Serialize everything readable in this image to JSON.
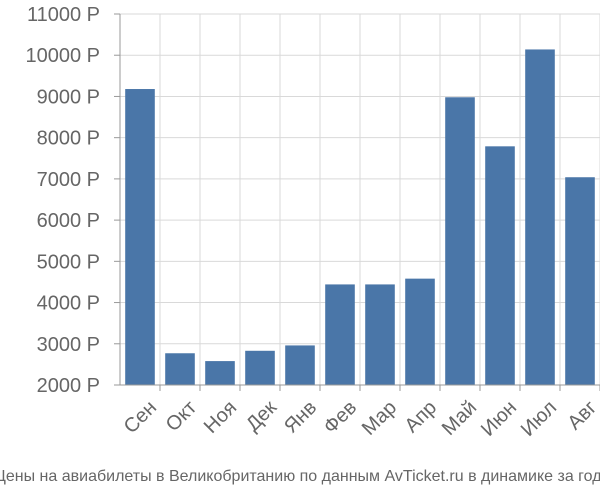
{
  "colors": {
    "bar": "#4a76a8",
    "grid": "#d9d9d9",
    "axis": "#999999",
    "text": "#666666"
  },
  "caption": "Цены на авиабилеты в Великобританию по данным AvTicket.ru в динамике за год.",
  "chart_data": {
    "type": "bar",
    "categories": [
      "Сен",
      "Окт",
      "Ноя",
      "Дек",
      "Янв",
      "Фев",
      "Мар",
      "Апр",
      "Май",
      "Июн",
      "Июл",
      "Авг"
    ],
    "values": [
      9180,
      2770,
      2580,
      2830,
      2960,
      4440,
      4440,
      4580,
      8980,
      7790,
      10140,
      7040
    ],
    "yticks": [
      2000,
      3000,
      4000,
      5000,
      6000,
      7000,
      8000,
      9000,
      10000,
      11000
    ],
    "ytick_labels": [
      "2000 Р",
      "3000 Р",
      "4000 Р",
      "5000 Р",
      "6000 Р",
      "7000 Р",
      "8000 Р",
      "9000 Р",
      "10000 Р",
      "11000 Р"
    ],
    "ylim": [
      2000,
      11000
    ],
    "grid": true,
    "legend": "none"
  }
}
